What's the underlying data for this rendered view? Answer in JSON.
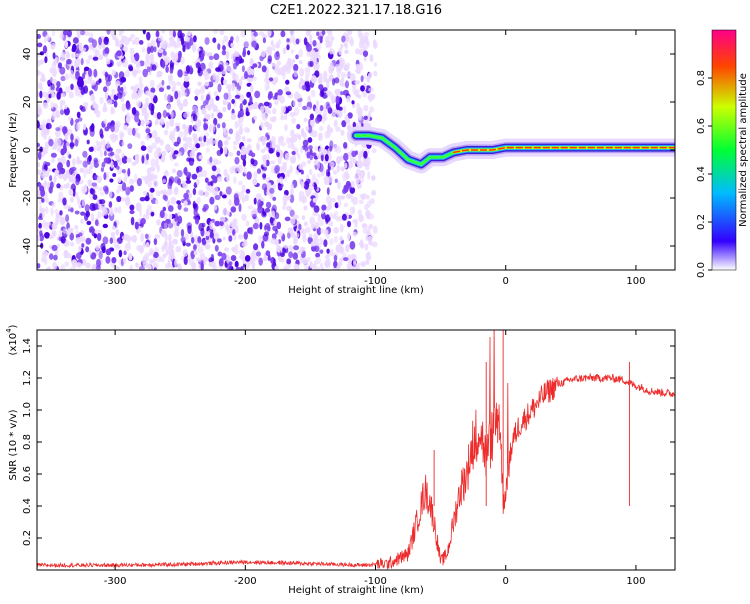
{
  "title": "C2E1.2022.321.17.18.G16",
  "colors": {
    "snr_line": "#ee2b2b",
    "spectro_low": "#ebd8ff",
    "spectro_mid": "#7a3cf0",
    "spectro_high": "#4a00e0"
  },
  "chart_data": [
    {
      "type": "heatmap",
      "xlabel": "Height of straight line (km)",
      "ylabel": "Frequency (Hz)",
      "xlim": [
        -360,
        130
      ],
      "ylim": [
        -50,
        50
      ],
      "x_ticks": [
        -300,
        -200,
        -100,
        0,
        100
      ],
      "y_ticks": [
        40,
        20,
        0,
        -20,
        -40
      ],
      "colorbar": {
        "label": "Normalized spectral amplitude",
        "range": [
          0,
          1
        ],
        "ticks": [
          "0.0",
          "0.2",
          "0.4",
          "0.6",
          "0.8"
        ],
        "tick_values": [
          0.0,
          0.2,
          0.4,
          0.6,
          0.8
        ],
        "colormap": [
          "#ffffff",
          "#3300ff",
          "#00bbff",
          "#00ff33",
          "#ccff00",
          "#ff4400",
          "#ff0088"
        ]
      },
      "signal_ridge": [
        {
          "x": -115,
          "y": 6
        },
        {
          "x": -105,
          "y": 6
        },
        {
          "x": -95,
          "y": 5
        },
        {
          "x": -85,
          "y": 1
        },
        {
          "x": -75,
          "y": -4
        },
        {
          "x": -65,
          "y": -6
        },
        {
          "x": -58,
          "y": -3
        },
        {
          "x": -48,
          "y": -3
        },
        {
          "x": -40,
          "y": -1
        },
        {
          "x": -30,
          "y": 0
        },
        {
          "x": -20,
          "y": 0
        },
        {
          "x": -10,
          "y": 0
        },
        {
          "x": 0,
          "y": 1
        },
        {
          "x": 20,
          "y": 1
        },
        {
          "x": 40,
          "y": 1
        },
        {
          "x": 60,
          "y": 1
        },
        {
          "x": 80,
          "y": 1
        },
        {
          "x": 100,
          "y": 1
        },
        {
          "x": 130,
          "y": 1
        }
      ],
      "noise_region_x": [
        -360,
        -100
      ]
    },
    {
      "type": "line",
      "xlabel": "Height of straight line (km)",
      "ylabel": "SNR (10 * v/v)",
      "y_scale_label": "(x10",
      "y_scale_exp": "4",
      "y_scale_close": ")",
      "xlim": [
        -360,
        130
      ],
      "ylim": [
        0,
        1.5
      ],
      "x_ticks": [
        -300,
        -200,
        -100,
        0,
        100
      ],
      "y_ticks": [
        0.2,
        0.4,
        0.6,
        0.8,
        1.0,
        1.2,
        1.4
      ],
      "y_tick_labels": [
        "0.2",
        "0.4",
        "0.6",
        "0.8",
        "1.0",
        "1.2",
        "1.4"
      ],
      "series": [
        {
          "x": [
            -360,
            -300,
            -250,
            -200,
            -150,
            -110,
            -90,
            -75,
            -70,
            -65,
            -62,
            -58,
            -55,
            -50,
            -45,
            -40,
            -35,
            -30,
            -25,
            -20,
            -15,
            -10,
            -5,
            -2,
            0,
            5,
            10,
            20,
            30,
            40,
            50,
            60,
            70,
            80,
            90,
            95,
            100,
            105,
            110,
            120,
            130
          ],
          "y": [
            0.03,
            0.03,
            0.035,
            0.05,
            0.04,
            0.03,
            0.04,
            0.1,
            0.25,
            0.4,
            0.5,
            0.42,
            0.3,
            0.05,
            0.1,
            0.3,
            0.5,
            0.6,
            0.8,
            0.9,
            0.7,
            0.85,
            1.0,
            0.45,
            0.5,
            0.8,
            0.9,
            1.0,
            1.1,
            1.16,
            1.19,
            1.2,
            1.2,
            1.2,
            1.19,
            1.17,
            1.15,
            1.14,
            1.12,
            1.11,
            1.1
          ]
        }
      ]
    }
  ]
}
